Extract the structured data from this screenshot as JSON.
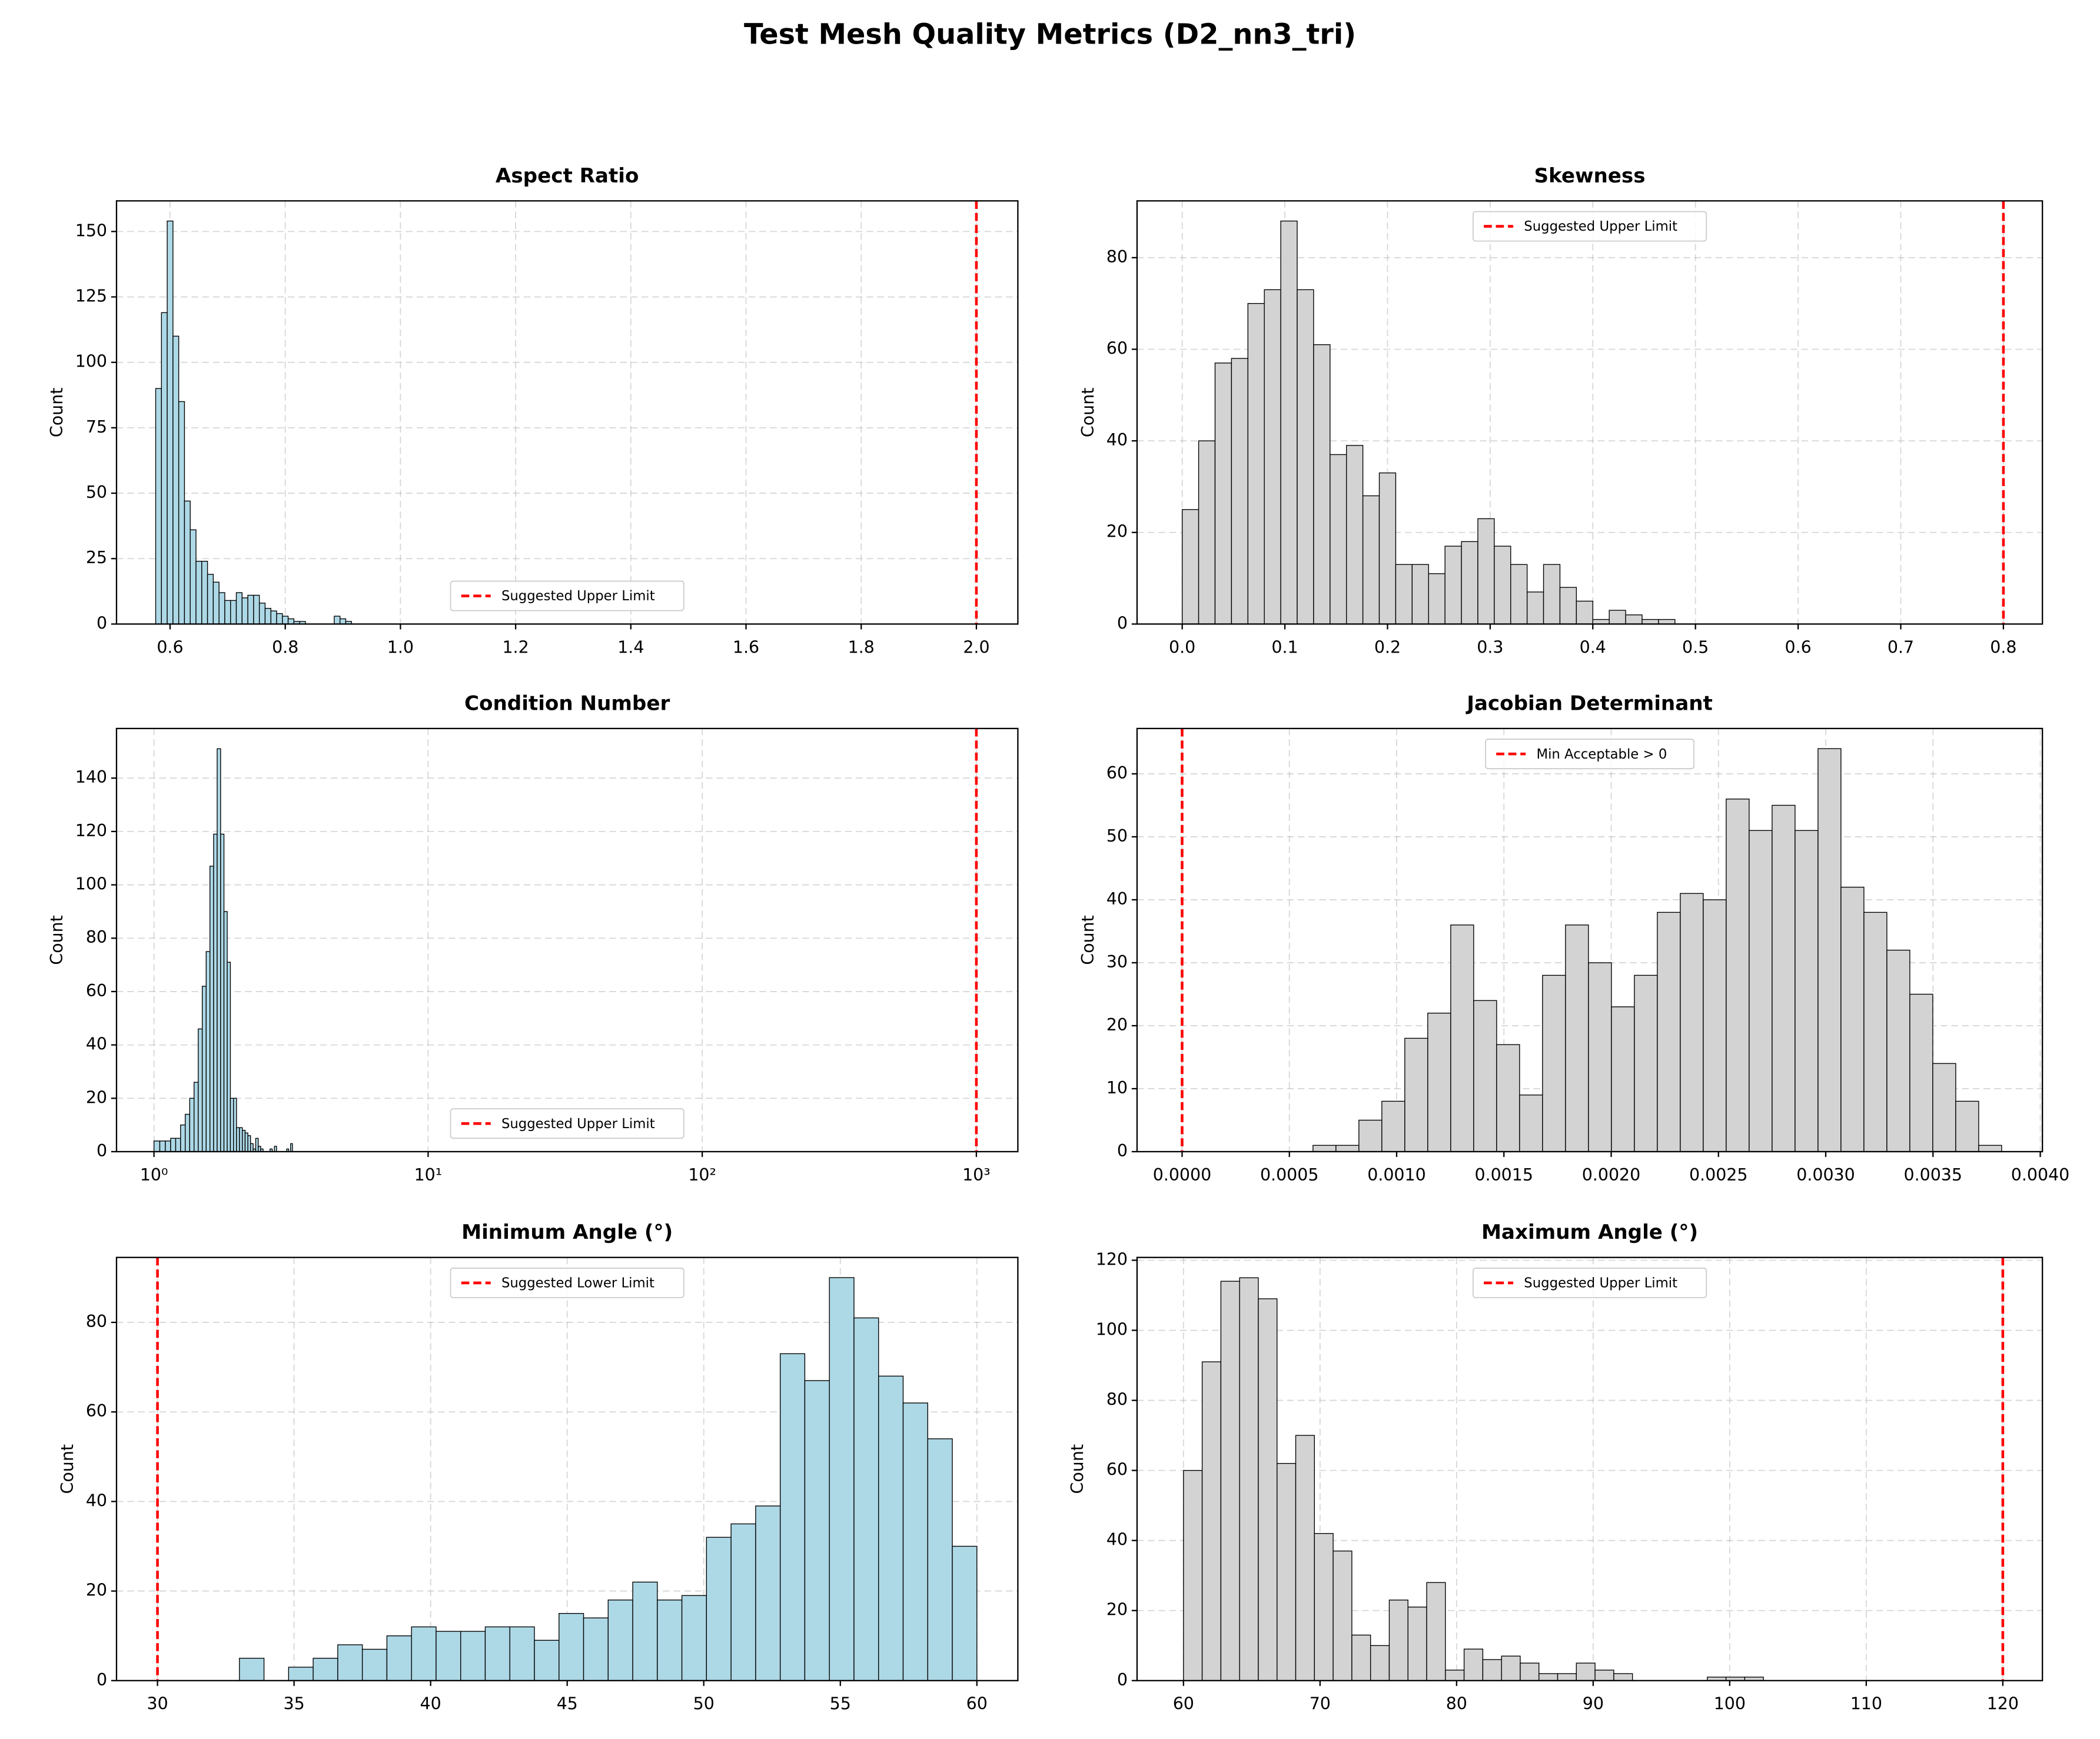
{
  "title": "Test Mesh Quality Metrics (D2_nn3_tri)",
  "chart_data": [
    {
      "type": "histogram",
      "title": "Aspect Ratio",
      "ylabel": "Count",
      "color": "#add8e6",
      "grid": true,
      "bins": [
        0.575,
        0.585,
        0.595,
        0.605,
        0.615,
        0.625,
        0.635,
        0.645,
        0.655,
        0.665,
        0.675,
        0.685,
        0.695,
        0.705,
        0.715,
        0.725,
        0.735,
        0.745,
        0.755,
        0.765,
        0.775,
        0.785,
        0.795,
        0.805,
        0.815,
        0.825,
        0.835,
        0.845,
        0.855,
        0.865,
        0.875,
        0.885,
        0.895,
        0.905,
        0.915
      ],
      "values": [
        90,
        119,
        154,
        110,
        85,
        47,
        36,
        24,
        24,
        19,
        16,
        12,
        9,
        9,
        12,
        10,
        11,
        11,
        8,
        6,
        5,
        4,
        3,
        2,
        1,
        1,
        0,
        0,
        0,
        0,
        0,
        3,
        2,
        1
      ],
      "xlim": [
        0.507,
        2.072
      ],
      "ylim": [
        0,
        161.7
      ],
      "xticks": [
        0.6,
        0.8,
        {
          "value": 1.0,
          "label": "1.0"
        },
        1.2,
        1.4,
        1.6,
        1.8,
        {
          "value": 2.0,
          "label": "2.0"
        }
      ],
      "yticks": [
        0,
        25,
        50,
        75,
        100,
        125,
        150
      ],
      "threshold": 2.0,
      "threshold_label": "Suggested Upper Limit",
      "threshold_color": "#ff0000",
      "legend": "lower center"
    },
    {
      "type": "histogram",
      "title": "Skewness",
      "ylabel": "Count",
      "color": "#d3d3d3",
      "grid": true,
      "bins": [
        0,
        0.016,
        0.032,
        0.048,
        0.064,
        0.08,
        0.096,
        0.112,
        0.128,
        0.144,
        0.16,
        0.176,
        0.192,
        0.208,
        0.224,
        0.24,
        0.256,
        0.272,
        0.288,
        0.304,
        0.32,
        0.336,
        0.352,
        0.368,
        0.384,
        0.4,
        0.416,
        0.432,
        0.448,
        0.464,
        0.48
      ],
      "values": [
        25,
        40,
        57,
        58,
        70,
        73,
        88,
        73,
        61,
        37,
        39,
        28,
        33,
        13,
        13,
        11,
        17,
        18,
        23,
        17,
        13,
        7,
        13,
        8,
        5,
        1,
        3,
        2,
        1,
        1
      ],
      "xlim": [
        -0.044,
        0.838
      ],
      "ylim": [
        0,
        92.4
      ],
      "xticks": [
        {
          "value": 0,
          "label": "0.0"
        },
        0.1,
        0.2,
        0.3,
        0.4,
        0.5,
        0.6,
        0.7,
        0.8
      ],
      "yticks": [
        0,
        20,
        40,
        60,
        80
      ],
      "threshold": 0.8,
      "threshold_label": "Suggested Upper Limit",
      "threshold_color": "#ff0000",
      "legend": "upper center"
    },
    {
      "type": "histogram",
      "title": "Condition Number",
      "ylabel": "Count",
      "color": "#add8e6",
      "grid": true,
      "xscale": "log",
      "bins": [
        1,
        1.05,
        1.1,
        1.15,
        1.2,
        1.25,
        1.3,
        1.35,
        1.4,
        1.45,
        1.5,
        1.55,
        1.6,
        1.65,
        1.7,
        1.75,
        1.8,
        1.85,
        1.9,
        1.95,
        2,
        2.05,
        2.1,
        2.15,
        2.2,
        2.25,
        2.3,
        2.35,
        2.4,
        2.45,
        2.5,
        2.55,
        2.6,
        2.65,
        2.7,
        2.75,
        2.8,
        2.85,
        2.9,
        2.95,
        3,
        3.05,
        3.1,
        3.15,
        3.2
      ],
      "values": [
        4,
        4,
        4,
        5,
        5,
        10,
        14,
        20,
        26,
        46,
        62,
        75,
        107,
        119,
        151,
        119,
        90,
        71,
        20,
        20,
        9,
        9,
        8,
        7,
        6,
        3,
        1,
        5,
        2,
        1,
        0,
        0,
        0,
        1,
        0,
        2,
        0,
        0,
        0,
        0,
        0,
        1,
        0,
        3
      ],
      "xlim": [
        0.73,
        1417
      ],
      "ylim": [
        0,
        158.6
      ],
      "xticks": [
        {
          "value": 1,
          "label": "10⁰"
        },
        {
          "value": 10,
          "label": "10¹"
        },
        {
          "value": 100,
          "label": "10²"
        },
        {
          "value": 1000,
          "label": "10³"
        }
      ],
      "yticks": [
        0,
        20,
        40,
        60,
        80,
        100,
        120,
        140
      ],
      "threshold": 1000,
      "threshold_label": "Suggested Upper Limit",
      "threshold_color": "#ff0000",
      "legend": "lower center"
    },
    {
      "type": "histogram",
      "title": "Jacobian Determinant",
      "ylabel": "Count",
      "color": "#d3d3d3",
      "grid": true,
      "bins": [
        0.00061,
        0.000717,
        0.000824,
        0.000931,
        0.001038,
        0.001145,
        0.001252,
        0.001359,
        0.001466,
        0.001573,
        0.00168,
        0.001787,
        0.001894,
        0.002001,
        0.002108,
        0.002215,
        0.002322,
        0.002429,
        0.002536,
        0.002643,
        0.00275,
        0.002857,
        0.002964,
        0.003071,
        0.003178,
        0.003285,
        0.003392,
        0.003499,
        0.003606,
        0.003713,
        0.00382
      ],
      "values": [
        1,
        1,
        5,
        8,
        18,
        22,
        36,
        24,
        17,
        9,
        28,
        36,
        30,
        23,
        28,
        38,
        41,
        40,
        56,
        51,
        55,
        51,
        64,
        42,
        38,
        32,
        25,
        14,
        8,
        1
      ],
      "xlim": [
        -0.00021,
        0.00401
      ],
      "ylim": [
        0,
        67.2
      ],
      "xticks": [
        {
          "value": 0,
          "label": "0.0000"
        },
        {
          "value": 0.0005,
          "label": "0.0005"
        },
        {
          "value": 0.001,
          "label": "0.0010"
        },
        {
          "value": 0.0015,
          "label": "0.0015"
        },
        {
          "value": 0.002,
          "label": "0.0020"
        },
        {
          "value": 0.0025,
          "label": "0.0025"
        },
        {
          "value": 0.003,
          "label": "0.0030"
        },
        {
          "value": 0.0035,
          "label": "0.0035"
        },
        {
          "value": 0.004,
          "label": "0.0040"
        }
      ],
      "yticks": [
        0,
        10,
        20,
        30,
        40,
        50,
        60
      ],
      "threshold": 0,
      "threshold_label": "Min Acceptable > 0",
      "threshold_color": "#ff0000",
      "legend": "upper center"
    },
    {
      "type": "histogram",
      "title": "Minimum Angle (°)",
      "ylabel": "Count",
      "color": "#add8e6",
      "grid": true,
      "bins": [
        33,
        33.9,
        34.8,
        35.7,
        36.6,
        37.5,
        38.4,
        39.3,
        40.2,
        41.1,
        42,
        42.9,
        43.8,
        44.7,
        45.6,
        46.5,
        47.4,
        48.3,
        49.2,
        50.1,
        51,
        51.9,
        52.8,
        53.7,
        54.6,
        55.5,
        56.4,
        57.3,
        58.2,
        59.1,
        60
      ],
      "values": [
        5,
        0,
        3,
        5,
        8,
        7,
        10,
        12,
        11,
        11,
        12,
        12,
        9,
        15,
        14,
        18,
        22,
        18,
        19,
        32,
        35,
        39,
        73,
        67,
        90,
        81,
        68,
        62,
        54,
        30
      ],
      "xlim": [
        28.5,
        61.5
      ],
      "ylim": [
        0,
        94.5
      ],
      "xticks": [
        30,
        35,
        40,
        45,
        50,
        55,
        60
      ],
      "yticks": [
        0,
        20,
        40,
        60,
        80
      ],
      "threshold": 30,
      "threshold_label": "Suggested Lower Limit",
      "threshold_color": "#ff0000",
      "legend": "upper center"
    },
    {
      "type": "histogram",
      "title": "Maximum Angle (°)",
      "ylabel": "Count",
      "color": "#d3d3d3",
      "grid": true,
      "bins": [
        60,
        61.37,
        62.74,
        64.11,
        65.48,
        66.85,
        68.22,
        69.59,
        70.96,
        72.33,
        73.7,
        75.07,
        76.44,
        77.81,
        79.18,
        80.55,
        81.92,
        83.29,
        84.66,
        86.03,
        87.4,
        88.77,
        90.14,
        91.51,
        92.88,
        94.25,
        95.62,
        96.99,
        98.36,
        99.73,
        101.1,
        102.47
      ],
      "values": [
        60,
        91,
        114,
        115,
        109,
        62,
        70,
        42,
        37,
        13,
        10,
        23,
        21,
        28,
        3,
        9,
        6,
        7,
        5,
        2,
        2,
        5,
        3,
        2,
        0,
        0,
        0,
        0,
        1,
        1,
        1
      ],
      "xlim": [
        56.6,
        122.9
      ],
      "ylim": [
        0,
        120.8
      ],
      "xticks": [
        60,
        70,
        80,
        90,
        100,
        110,
        120
      ],
      "yticks": [
        0,
        20,
        40,
        60,
        80,
        100,
        120
      ],
      "threshold": 120,
      "threshold_label": "Suggested Upper Limit",
      "threshold_color": "#ff0000",
      "legend": "upper center"
    }
  ]
}
